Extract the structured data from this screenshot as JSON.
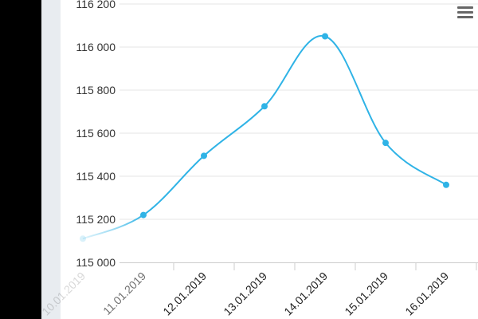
{
  "chart_data": {
    "type": "line",
    "categories": [
      "10.01.2019",
      "11.01.2019",
      "12.01.2019",
      "13.01.2019",
      "14.01.2019",
      "15.01.2019",
      "16.01.2019"
    ],
    "series": [
      {
        "values": [
          115110,
          115220,
          115495,
          115725,
          116050,
          115555,
          115360
        ]
      }
    ],
    "y_ticks": [
      "115 000",
      "115 200",
      "115 400",
      "115 600",
      "115 800",
      "116 000",
      "116 200"
    ],
    "ylim": [
      115000,
      116200
    ],
    "xlabel": "",
    "ylabel": "",
    "grid": true,
    "colors": {
      "line": "#2fb3e6",
      "grid": "#e6e6e6"
    }
  },
  "toolbar": {
    "menu_icon": "hamburger-menu-icon"
  }
}
